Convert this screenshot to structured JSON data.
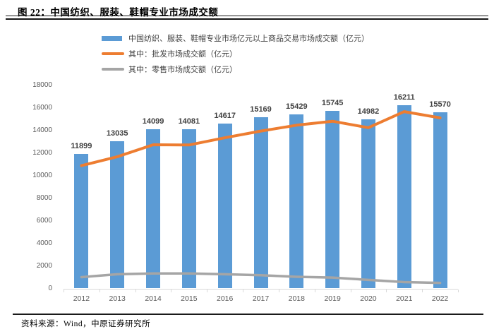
{
  "figure": {
    "title": "图 22：中国纺织、服装、鞋帽专业市场成交额",
    "source": "资料来源：Wind，中原证券研究所"
  },
  "chart_data": {
    "type": "bar",
    "subtype": "bar-line-combo",
    "title": "中国纺织、服装、鞋帽专业市场成交额",
    "categories": [
      "2012",
      "2013",
      "2014",
      "2015",
      "2016",
      "2017",
      "2018",
      "2019",
      "2020",
      "2021",
      "2022"
    ],
    "series": [
      {
        "id": "total",
        "name": "中国纺织、服装、鞋帽专业市场亿元以上商品交易市场成交额（亿元）",
        "type": "bar",
        "color": "#5B9BD5",
        "data_labels": true,
        "values": [
          11899,
          13035,
          14099,
          14081,
          14617,
          15169,
          15429,
          15745,
          14982,
          16211,
          15570
        ]
      },
      {
        "id": "wholesale",
        "name": "其中：批发市场成交额（亿元）",
        "type": "line",
        "color": "#ED7D31",
        "data_labels": false,
        "values": [
          10870,
          11660,
          12720,
          12700,
          13340,
          13930,
          14450,
          14800,
          14230,
          15650,
          15100
        ]
      },
      {
        "id": "retail",
        "name": "其中：零售市场成交额（亿元）",
        "type": "line",
        "color": "#A5A5A5",
        "data_labels": false,
        "values": [
          1000,
          1260,
          1330,
          1330,
          1260,
          1170,
          1030,
          960,
          760,
          560,
          490
        ]
      }
    ],
    "ylim": [
      0,
      18000
    ],
    "yticks": [
      0,
      2000,
      4000,
      6000,
      8000,
      10000,
      12000,
      14000,
      16000,
      18000
    ],
    "grid": false,
    "legend_position": "top-left",
    "axis_color": "#D9D9D9",
    "tick_label_color": "#595959",
    "data_label_color": "#404040"
  }
}
